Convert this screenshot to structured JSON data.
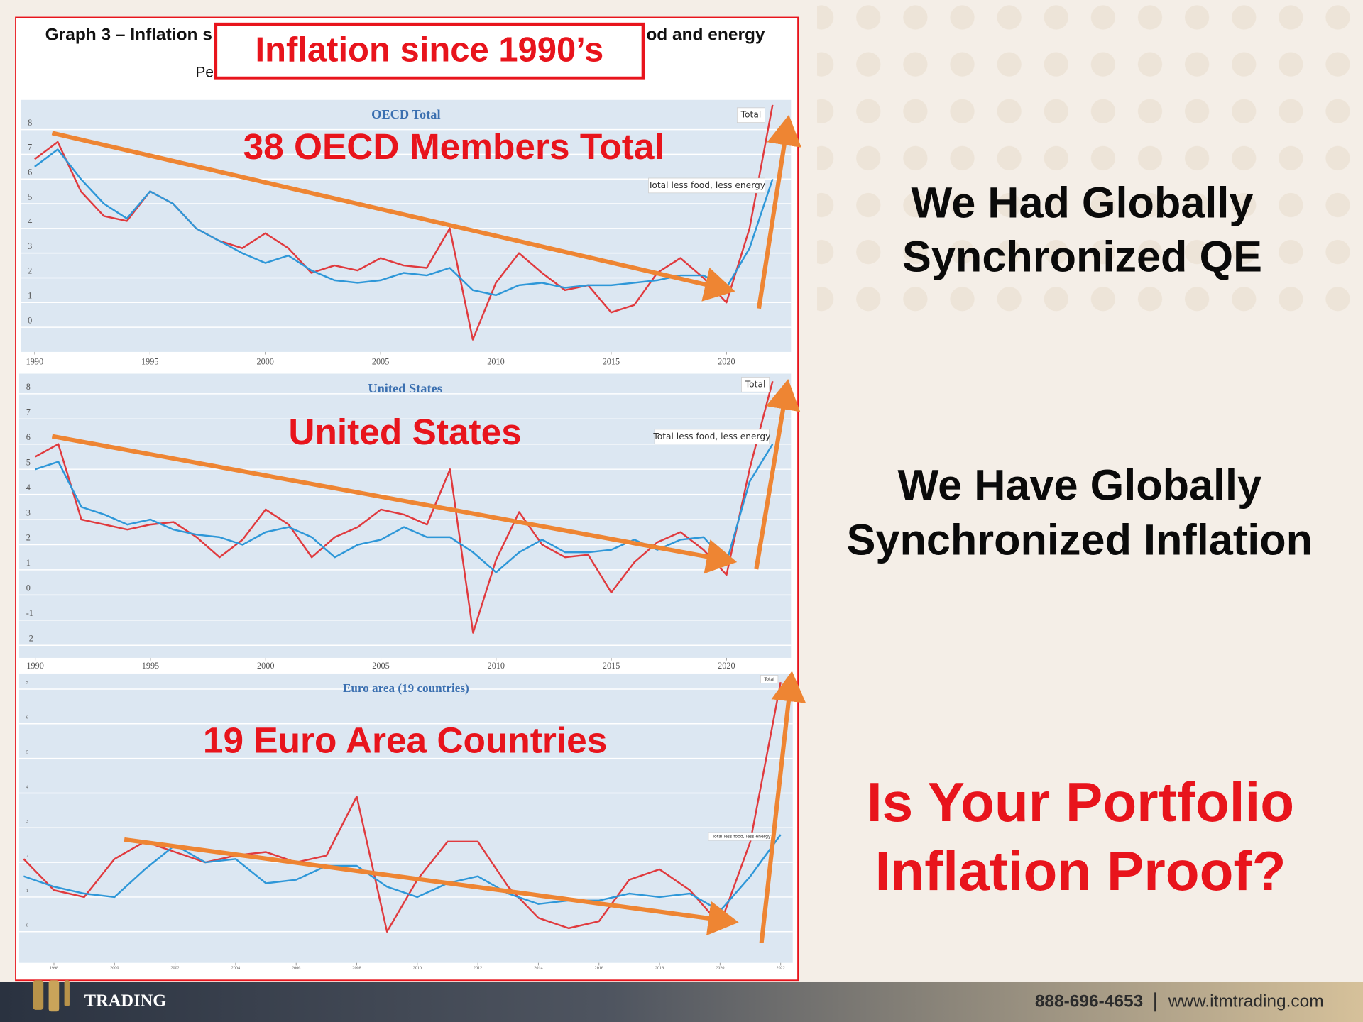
{
  "slide": {
    "header_fragments": [
      "Graph 3 – Inflation s",
      "od and energy",
      "Pe"
    ],
    "callout": "Inflation since 1990’s",
    "statement_1": [
      "We Had Globally",
      "Synchronized QE"
    ],
    "statement_2": [
      "We Have Globally",
      "Synchronized Inflation"
    ],
    "question": [
      "Is Your Portfolio",
      "Inflation Proof?"
    ],
    "footer": {
      "logo": "TRADING",
      "phone": "888-696-4653",
      "website": "www.itmtrading.com"
    }
  },
  "chart_data": [
    {
      "type": "line",
      "title": "OECD Total",
      "annotation": "38 OECD Members Total",
      "x": [
        1990,
        1991,
        1992,
        1993,
        1994,
        1995,
        1996,
        1997,
        1998,
        1999,
        2000,
        2001,
        2002,
        2003,
        2004,
        2005,
        2006,
        2007,
        2008,
        2009,
        2010,
        2011,
        2012,
        2013,
        2014,
        2015,
        2016,
        2017,
        2018,
        2019,
        2020,
        2021,
        2022
      ],
      "series": [
        {
          "name": "Total",
          "color": "#e03a3e",
          "values": [
            6.8,
            7.5,
            5.5,
            4.5,
            4.3,
            5.5,
            5.0,
            4.0,
            3.5,
            3.2,
            3.8,
            3.2,
            2.2,
            2.5,
            2.3,
            2.8,
            2.5,
            2.4,
            4.0,
            -0.5,
            1.8,
            3.0,
            2.2,
            1.5,
            1.7,
            0.6,
            0.9,
            2.2,
            2.8,
            2.0,
            1.0,
            4.0,
            9.0
          ]
        },
        {
          "name": "Total less food, less energy",
          "color": "#2e97d8",
          "values": [
            6.5,
            7.2,
            6.0,
            5.0,
            4.4,
            5.5,
            5.0,
            4.0,
            3.5,
            3.0,
            2.6,
            2.9,
            2.3,
            1.9,
            1.8,
            1.9,
            2.2,
            2.1,
            2.4,
            1.5,
            1.3,
            1.7,
            1.8,
            1.6,
            1.7,
            1.7,
            1.8,
            1.9,
            2.1,
            2.1,
            1.6,
            3.2,
            6.0
          ]
        }
      ],
      "xlim": [
        1989.4,
        2022.8
      ],
      "ylim": [
        -1,
        9.2
      ],
      "xticks": [
        1990,
        1995,
        2000,
        2005,
        2010,
        2015,
        2020
      ],
      "yticks": [
        0,
        1,
        2,
        3,
        4,
        5,
        6,
        7,
        8
      ],
      "grid": true
    },
    {
      "type": "line",
      "title": "United States",
      "annotation": "United States",
      "x": [
        1990,
        1991,
        1992,
        1993,
        1994,
        1995,
        1996,
        1997,
        1998,
        1999,
        2000,
        2001,
        2002,
        2003,
        2004,
        2005,
        2006,
        2007,
        2008,
        2009,
        2010,
        2011,
        2012,
        2013,
        2014,
        2015,
        2016,
        2017,
        2018,
        2019,
        2020,
        2021,
        2022
      ],
      "series": [
        {
          "name": "Total",
          "color": "#e03a3e",
          "values": [
            5.5,
            6.0,
            3.0,
            2.8,
            2.6,
            2.8,
            2.9,
            2.3,
            1.5,
            2.2,
            3.4,
            2.8,
            1.5,
            2.3,
            2.7,
            3.4,
            3.2,
            2.8,
            5.0,
            -1.5,
            1.4,
            3.3,
            2.0,
            1.5,
            1.6,
            0.1,
            1.3,
            2.1,
            2.5,
            1.8,
            0.8,
            5.0,
            8.5
          ]
        },
        {
          "name": "Total less food, less energy",
          "color": "#2e97d8",
          "values": [
            5.0,
            5.3,
            3.5,
            3.2,
            2.8,
            3.0,
            2.6,
            2.4,
            2.3,
            2.0,
            2.5,
            2.7,
            2.3,
            1.5,
            2.0,
            2.2,
            2.7,
            2.3,
            2.3,
            1.7,
            0.9,
            1.7,
            2.2,
            1.7,
            1.7,
            1.8,
            2.2,
            1.8,
            2.2,
            2.3,
            1.3,
            4.5,
            6.0
          ]
        }
      ],
      "xlim": [
        1989.3,
        2022.8
      ],
      "ylim": [
        -2.5,
        8.8
      ],
      "xticks": [
        1990,
        1995,
        2000,
        2005,
        2010,
        2015,
        2020
      ],
      "yticks": [
        -2,
        -1,
        0,
        1,
        2,
        3,
        4,
        5,
        6,
        7,
        8
      ],
      "grid": true
    },
    {
      "type": "line",
      "title": "Euro area (19 countries)",
      "annotation": "19 Euro Area Countries",
      "x": [
        1997,
        1998,
        1999,
        2000,
        2001,
        2002,
        2003,
        2004,
        2005,
        2006,
        2007,
        2008,
        2009,
        2010,
        2011,
        2012,
        2013,
        2014,
        2015,
        2016,
        2017,
        2018,
        2019,
        2020,
        2021,
        2022
      ],
      "series": [
        {
          "name": "Total",
          "color": "#e03a3e",
          "values": [
            2.1,
            1.2,
            1.0,
            2.1,
            2.6,
            2.3,
            2.0,
            2.2,
            2.3,
            2.0,
            2.2,
            3.9,
            0.0,
            1.5,
            2.6,
            2.6,
            1.3,
            0.4,
            0.1,
            0.3,
            1.5,
            1.8,
            1.2,
            0.2,
            2.6,
            7.2
          ]
        },
        {
          "name": "Total less food, less energy",
          "color": "#2e97d8",
          "values": [
            1.6,
            1.3,
            1.1,
            1.0,
            1.8,
            2.5,
            2.0,
            2.1,
            1.4,
            1.5,
            1.9,
            1.9,
            1.3,
            1.0,
            1.4,
            1.6,
            1.1,
            0.8,
            0.9,
            0.9,
            1.1,
            1.0,
            1.1,
            0.6,
            1.6,
            2.8
          ]
        }
      ],
      "xlim": [
        1996.85,
        2022.4
      ],
      "ylim": [
        -0.9,
        7.45
      ],
      "xticks": [
        1998,
        2000,
        2002,
        2004,
        2006,
        2008,
        2010,
        2012,
        2014,
        2016,
        2018,
        2020,
        2022
      ],
      "yticks": [
        0,
        1,
        2,
        3,
        4,
        5,
        6,
        7
      ],
      "grid": true
    }
  ]
}
